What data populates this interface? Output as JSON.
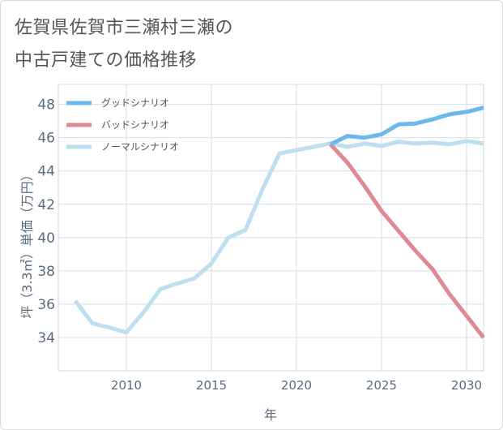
{
  "chart_data": {
    "type": "line",
    "title_lines": [
      "佐賀県佐賀市三瀬村三瀬の",
      "中古戸建ての価格推移"
    ],
    "xlabel": "年",
    "ylabel": "坪（3.3㎡）単価（万円）",
    "xlim": [
      2006,
      2031
    ],
    "ylim": [
      32,
      49.2
    ],
    "x_ticks": [
      2010,
      2015,
      2020,
      2025,
      2030
    ],
    "y_ticks": [
      34,
      36,
      38,
      40,
      42,
      44,
      46,
      48
    ],
    "grid": true,
    "legend_position": "top-left",
    "series": [
      {
        "name": "グッドシナリオ",
        "color": "#6cb8ee",
        "x": [
          2022,
          2023,
          2024,
          2025,
          2026,
          2027,
          2028,
          2029,
          2030,
          2031
        ],
        "y": [
          45.6,
          46.1,
          46.0,
          46.2,
          46.8,
          46.85,
          47.1,
          47.4,
          47.55,
          47.8
        ]
      },
      {
        "name": "バッドシナリオ",
        "color": "#de8a92",
        "x": [
          2022,
          2023,
          2024,
          2025,
          2026,
          2027,
          2028,
          2029,
          2030,
          2031
        ],
        "y": [
          45.6,
          44.5,
          43.1,
          41.6,
          40.4,
          39.2,
          38.1,
          36.6,
          35.3,
          34.0
        ]
      },
      {
        "name": "ノーマルシナリオ",
        "color": "#bfdff0",
        "x": [
          2007,
          2008,
          2009,
          2010,
          2011,
          2012,
          2013,
          2014,
          2015,
          2016,
          2017,
          2018,
          2019,
          2020,
          2021,
          2022,
          2023,
          2024,
          2025,
          2026,
          2027,
          2028,
          2029,
          2030,
          2031
        ],
        "y": [
          36.2,
          34.85,
          34.6,
          34.3,
          35.5,
          36.9,
          37.25,
          37.55,
          38.45,
          40.0,
          40.45,
          42.9,
          45.05,
          45.25,
          45.45,
          45.65,
          45.45,
          45.65,
          45.5,
          45.75,
          45.65,
          45.7,
          45.6,
          45.8,
          45.65
        ]
      }
    ]
  }
}
